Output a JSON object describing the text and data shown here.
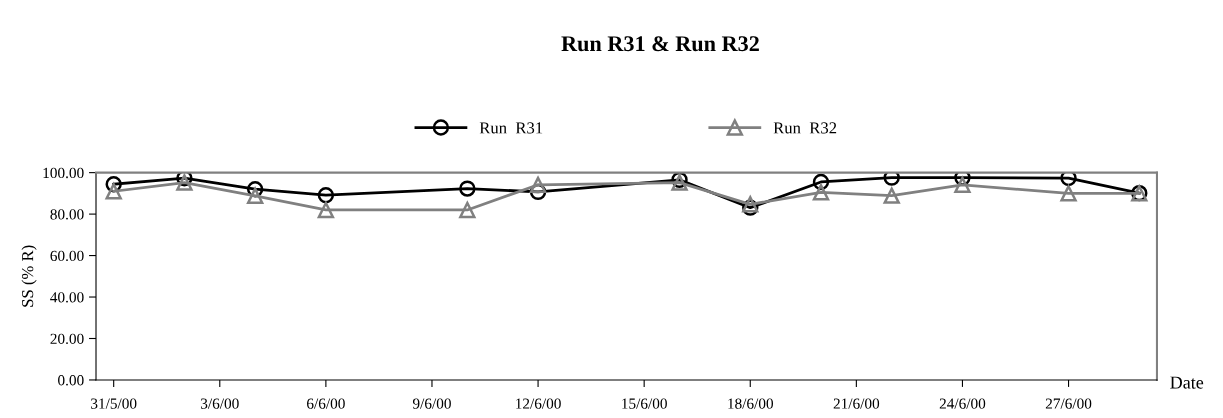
{
  "chart_data": {
    "type": "line",
    "title": "Run R31 & Run R32",
    "xlabel": "Date",
    "ylabel": "SS (% R)",
    "x": [
      "2000-05-31",
      "2000-06-02",
      "2000-06-04",
      "2000-06-06",
      "2000-06-10",
      "2000-06-12",
      "2000-06-16",
      "2000-06-18",
      "2000-06-20",
      "2000-06-22",
      "2000-06-24",
      "2000-06-27",
      "2000-06-29"
    ],
    "series": [
      {
        "name": "Run  R31",
        "color": "#000000",
        "marker": "circle",
        "values": [
          94.4,
          97.3,
          92.0,
          89.1,
          92.3,
          90.7,
          96.5,
          83.1,
          95.5,
          97.6,
          97.6,
          97.4,
          90.1
        ]
      },
      {
        "name": "Run  R32",
        "color": "#808080",
        "marker": "triangle",
        "values": [
          91.0,
          95.2,
          88.8,
          82.0,
          82.0,
          94.1,
          95.2,
          84.7,
          90.5,
          88.9,
          94.1,
          90.0,
          90.0
        ]
      }
    ],
    "xlim": [
      "2000-05-30T12:00",
      "2000-06-29T12:00"
    ],
    "xticks": [
      {
        "value": "2000-05-31",
        "label": "31/5/00"
      },
      {
        "value": "2000-06-03",
        "label": "3/6/00"
      },
      {
        "value": "2000-06-06",
        "label": "6/6/00"
      },
      {
        "value": "2000-06-09",
        "label": "9/6/00"
      },
      {
        "value": "2000-06-12",
        "label": "12/6/00"
      },
      {
        "value": "2000-06-15",
        "label": "15/6/00"
      },
      {
        "value": "2000-06-18",
        "label": "18/6/00"
      },
      {
        "value": "2000-06-21",
        "label": "21/6/00"
      },
      {
        "value": "2000-06-24",
        "label": "24/6/00"
      },
      {
        "value": "2000-06-27",
        "label": "27/6/00"
      }
    ],
    "ylim": [
      0,
      100
    ],
    "yticks": [
      {
        "value": 0,
        "label": "0.00"
      },
      {
        "value": 20,
        "label": "20.00"
      },
      {
        "value": 40,
        "label": "40.00"
      },
      {
        "value": 60,
        "label": "60.00"
      },
      {
        "value": 80,
        "label": "80.00"
      },
      {
        "value": 100,
        "label": "100.00"
      }
    ],
    "grid": false,
    "legend": "top",
    "line_style": "solid"
  }
}
